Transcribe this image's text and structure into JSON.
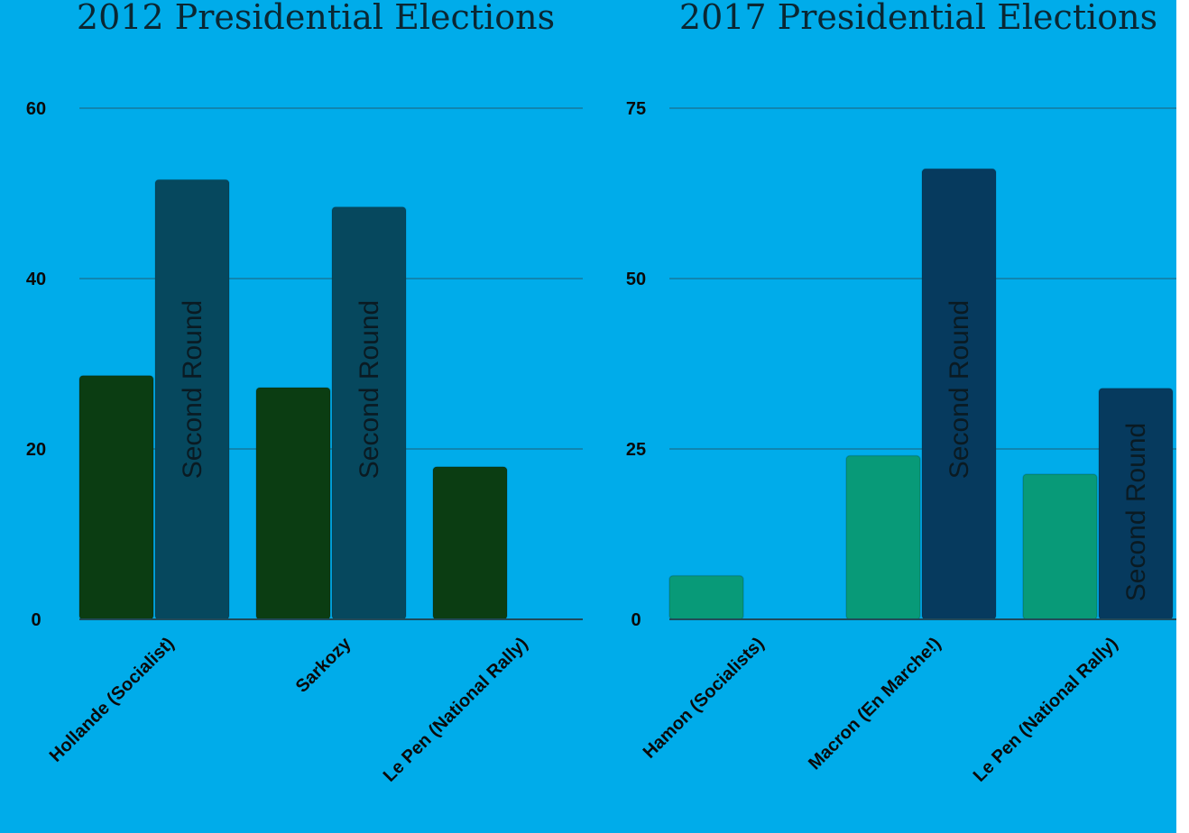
{
  "colors": {
    "background": "#00acea",
    "first_round_2012": "#0b3d12",
    "second_round_2012": "#06485e",
    "first_round_2017": "#089a78",
    "second_round_2017": "#063a5e"
  },
  "chart_data": [
    {
      "type": "bar",
      "title": "2012 Presidential Elections",
      "categories": [
        "Hollande (Socialist)",
        "Sarkozy",
        "Le Pen (National Rally)"
      ],
      "ylim": [
        0,
        60
      ],
      "yticks": [
        "0",
        "20",
        "40",
        "60"
      ],
      "grid": true,
      "series": [
        {
          "values": [
            28.6,
            27.2,
            17.9
          ]
        },
        {
          "values": [
            51.6,
            48.4,
            null
          ]
        }
      ],
      "bar_labels": [
        "Second Round",
        "Second Round",
        ""
      ]
    },
    {
      "type": "bar",
      "title": "2017 Presidential Elections",
      "categories": [
        "Hamon (Socialists)",
        "Macron (En Marche!)",
        "Le Pen (National Rally)"
      ],
      "ylim": [
        0,
        75
      ],
      "yticks": [
        "0",
        "25",
        "50",
        "75"
      ],
      "grid": true,
      "series": [
        {
          "values": [
            6.4,
            24.0,
            21.3
          ]
        },
        {
          "values": [
            null,
            66.1,
            33.9
          ]
        }
      ],
      "bar_labels": [
        "",
        "Second Round",
        "Second Round"
      ]
    }
  ]
}
